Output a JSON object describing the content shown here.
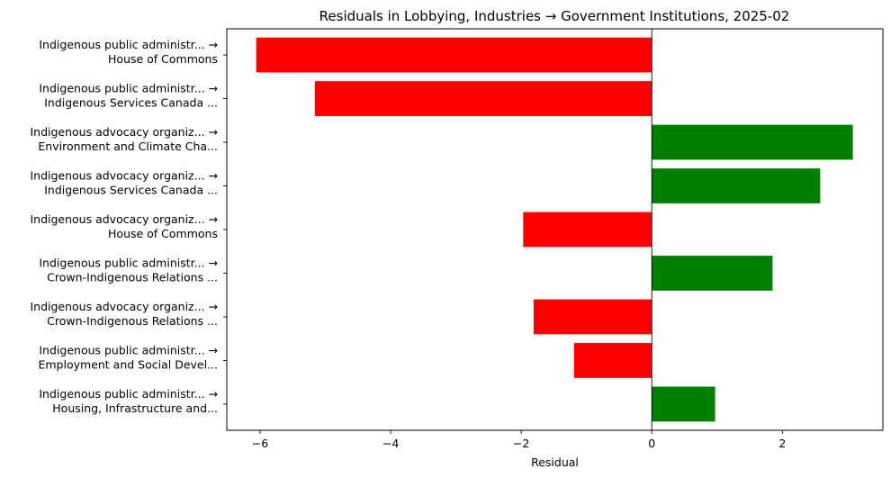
{
  "chart_data": {
    "type": "bar",
    "orientation": "horizontal",
    "title": "Residuals in Lobbying, Industries → Government Institutions, 2025-02",
    "xlabel": "Residual",
    "ylabel": "",
    "xlim": [
      -6.51,
      3.54
    ],
    "xticks": [
      -6,
      -4,
      -2,
      0,
      2
    ],
    "xtick_labels": [
      "−6",
      "−4",
      "−2",
      "0",
      "2"
    ],
    "grid": false,
    "legend": null,
    "zero_line": true,
    "colors": {
      "positive": "#008000",
      "negative": "#ff0000"
    },
    "categories": [
      [
        "Indigenous public administr... →",
        "House of Commons"
      ],
      [
        "Indigenous public administr... →",
        "Indigenous Services Canada ..."
      ],
      [
        "Indigenous advocacy organiz... →",
        "Environment and Climate Cha..."
      ],
      [
        "Indigenous advocacy organiz... →",
        "Indigenous Services Canada ..."
      ],
      [
        "Indigenous advocacy organiz... →",
        "House of Commons"
      ],
      [
        "Indigenous public administr... →",
        "Crown-Indigenous Relations ..."
      ],
      [
        "Indigenous advocacy organiz... →",
        "Crown-Indigenous Relations ..."
      ],
      [
        "Indigenous public administr... →",
        "Employment and Social Devel..."
      ],
      [
        "Indigenous public administr... →",
        "Housing, Infrastructure and..."
      ]
    ],
    "values": [
      -6.06,
      -5.16,
      3.08,
      2.58,
      -1.97,
      1.85,
      -1.81,
      -1.19,
      0.97
    ]
  }
}
